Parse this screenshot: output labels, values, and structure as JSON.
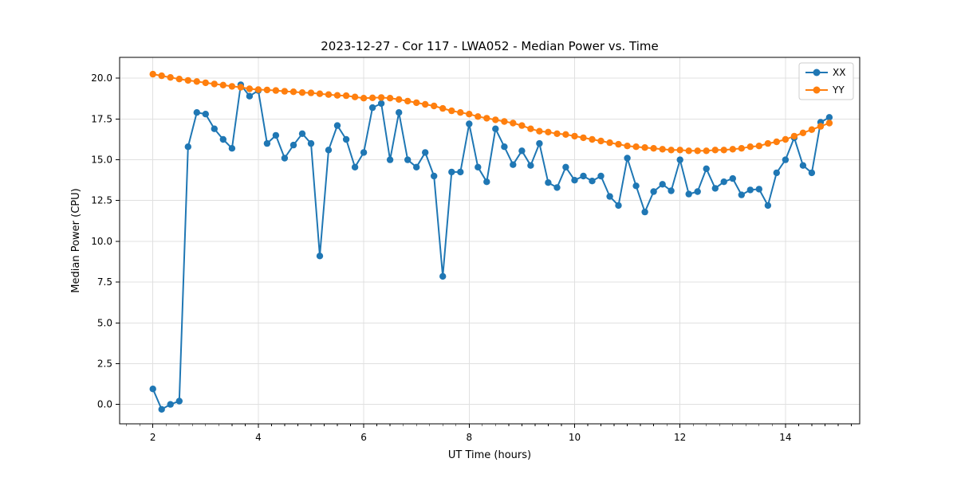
{
  "chart_data": {
    "type": "line",
    "title": "2023-12-27 - Cor 117 - LWA052 - Median Power vs. Time",
    "xlabel": "UT Time (hours)",
    "ylabel": "Median Power (CPU)",
    "xlim": [
      1.369,
      15.409
    ],
    "ylim": [
      -1.19,
      21.28
    ],
    "grid": true,
    "grid_color": "#e0e0e0",
    "spine_color": "#000000",
    "background_color": "#ffffff",
    "xticks": {
      "values": [
        2,
        4,
        6,
        8,
        10,
        12,
        14
      ],
      "labels": [
        "2",
        "4",
        "6",
        "8",
        "10",
        "12",
        "14"
      ]
    },
    "x_minor_ticks": {
      "start": 1.5,
      "end": 15.25,
      "step": 0.25
    },
    "yticks": {
      "values": [
        0,
        2.5,
        5,
        7.5,
        10,
        12.5,
        15,
        17.5,
        20
      ],
      "labels": [
        "0.0",
        "2.5",
        "5.0",
        "7.5",
        "10.0",
        "12.5",
        "15.0",
        "17.5",
        "20.0"
      ]
    },
    "legend": {
      "position": "upper right",
      "border_color": "#cccccc",
      "fill": "#ffffff",
      "entries": [
        "XX",
        "YY"
      ]
    },
    "x": [
      2.0,
      2.167,
      2.333,
      2.5,
      2.667,
      2.833,
      3.0,
      3.167,
      3.333,
      3.5,
      3.667,
      3.833,
      4.0,
      4.167,
      4.333,
      4.5,
      4.667,
      4.833,
      5.0,
      5.167,
      5.333,
      5.5,
      5.667,
      5.833,
      6.0,
      6.167,
      6.333,
      6.5,
      6.667,
      6.833,
      7.0,
      7.167,
      7.333,
      7.5,
      7.667,
      7.833,
      8.0,
      8.167,
      8.333,
      8.5,
      8.667,
      8.833,
      9.0,
      9.167,
      9.333,
      9.5,
      9.667,
      9.833,
      10.0,
      10.167,
      10.333,
      10.5,
      10.667,
      10.833,
      11.0,
      11.167,
      11.333,
      11.5,
      11.667,
      11.833,
      12.0,
      12.167,
      12.333,
      12.5,
      12.667,
      12.833,
      13.0,
      13.167,
      13.333,
      13.5,
      13.667,
      13.833,
      14.0,
      14.167,
      14.333,
      14.5,
      14.667,
      14.833
    ],
    "series": [
      {
        "name": "XX",
        "color": "#1f77b4",
        "values": [
          0.95,
          -0.3,
          0.0,
          0.2,
          15.8,
          17.9,
          17.8,
          16.9,
          16.25,
          15.7,
          19.6,
          18.9,
          19.25,
          16.0,
          16.5,
          15.1,
          15.9,
          16.6,
          16.0,
          9.1,
          15.6,
          17.1,
          16.25,
          14.55,
          15.45,
          18.2,
          18.45,
          15.0,
          17.9,
          15.0,
          14.55,
          15.45,
          14.0,
          7.85,
          14.25,
          14.25,
          17.2,
          14.55,
          13.65,
          16.9,
          15.8,
          14.7,
          15.55,
          14.65,
          16.0,
          13.6,
          13.3,
          14.55,
          13.75,
          14.0,
          13.7,
          14.0,
          12.75,
          12.2,
          15.1,
          13.4,
          11.8,
          13.05,
          13.5,
          13.1,
          15.0,
          12.9,
          13.05,
          14.45,
          13.25,
          13.65,
          13.85,
          12.85,
          13.15,
          13.2,
          12.2,
          14.2,
          15.0,
          16.35,
          14.65,
          14.2,
          17.3,
          17.6
        ]
      },
      {
        "name": "YY",
        "color": "#ff7f0e",
        "values": [
          20.25,
          20.15,
          20.05,
          19.95,
          19.87,
          19.8,
          19.72,
          19.65,
          19.58,
          19.5,
          19.45,
          19.35,
          19.3,
          19.28,
          19.25,
          19.2,
          19.17,
          19.12,
          19.1,
          19.05,
          19.0,
          18.95,
          18.93,
          18.85,
          18.78,
          18.8,
          18.82,
          18.78,
          18.7,
          18.6,
          18.5,
          18.4,
          18.3,
          18.15,
          18.0,
          17.9,
          17.8,
          17.65,
          17.55,
          17.45,
          17.35,
          17.25,
          17.1,
          16.9,
          16.75,
          16.7,
          16.6,
          16.55,
          16.45,
          16.35,
          16.25,
          16.15,
          16.05,
          15.95,
          15.85,
          15.8,
          15.75,
          15.7,
          15.65,
          15.6,
          15.6,
          15.55,
          15.55,
          15.55,
          15.6,
          15.6,
          15.65,
          15.7,
          15.8,
          15.85,
          16.0,
          16.1,
          16.25,
          16.45,
          16.65,
          16.85,
          17.05,
          17.25
        ]
      }
    ]
  }
}
